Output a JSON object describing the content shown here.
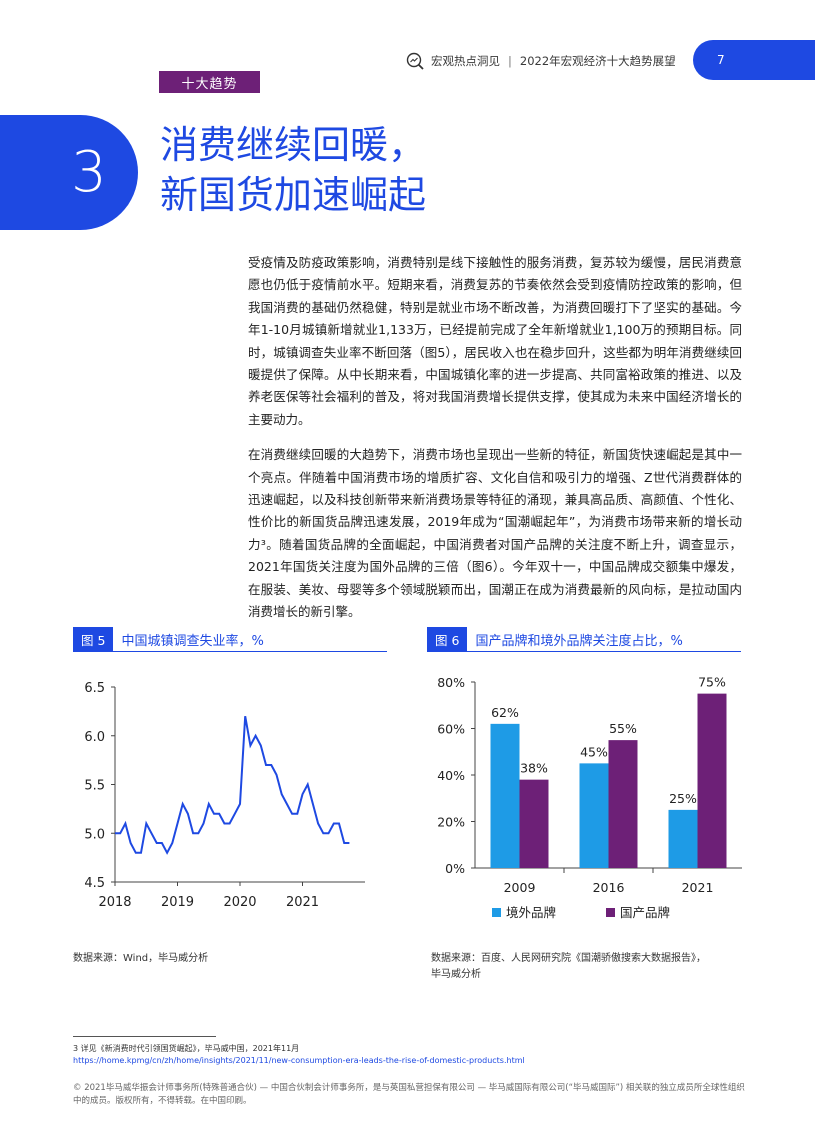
{
  "header": {
    "section": "宏观热点洞见",
    "report": "2022年宏观经济十大趋势展望",
    "page_number": "7"
  },
  "section_tag": "十大趋势",
  "chapter": {
    "number": "3",
    "title_line1": "消费继续回暖，",
    "title_line2": "新国货加速崛起"
  },
  "body": {
    "para1": "受疫情及防疫政策影响，消费特别是线下接触性的服务消费，复苏较为缓慢，居民消费意愿也仍低于疫情前水平。短期来看，消费复苏的节奏依然会受到疫情防控政策的影响，但我国消费的基础仍然稳健，特别是就业市场不断改善，为消费回暖打下了坚实的基础。今年1-10月城镇新增就业1,133万，已经提前完成了全年新增就业1,100万的预期目标。同时，城镇调查失业率不断回落（图5），居民收入也在稳步回升，这些都为明年消费继续回暖提供了保障。从中长期来看，中国城镇化率的进一步提高、共同富裕政策的推进、以及养老医保等社会福利的普及，将对我国消费增长提供支撑，使其成为未来中国经济增长的主要动力。",
    "para2": "在消费继续回暖的大趋势下，消费市场也呈现出一些新的特征，新国货快速崛起是其中一个亮点。伴随着中国消费市场的增质扩容、文化自信和吸引力的增强、Z世代消费群体的迅速崛起，以及科技创新带来新消费场景等特征的涌现，兼具高品质、高颜值、个性化、性价比的新国货品牌迅速发展，2019年成为“国潮崛起年”，为消费市场带来新的增长动力³。随着国货品牌的全面崛起，中国消费者对国产品牌的关注度不断上升，调查显示，2021年国货关注度为国外品牌的三倍（图6）。今年双十一，中国品牌成交额集中爆发，在服装、美妆、母婴等多个领域脱颖而出，国潮正在成为消费最新的风向标，是拉动国内消费增长的新引擎。"
  },
  "fig5": {
    "num": "图 5",
    "title": "中国城镇调查失业率，%",
    "source": "数据来源：Wind，毕马威分析"
  },
  "fig6": {
    "num": "图 6",
    "title": "国产品牌和境外品牌关注度占比，%",
    "source_line1": "数据来源：百度、人民网研究院《国潮骄傲搜索大数据报告》，",
    "source_line2": "毕马威分析"
  },
  "chart_data": [
    {
      "type": "line",
      "x": [
        "2018-01",
        "2018-02",
        "2018-03",
        "2018-04",
        "2018-05",
        "2018-06",
        "2018-07",
        "2018-08",
        "2018-09",
        "2018-10",
        "2018-11",
        "2018-12",
        "2019-01",
        "2019-02",
        "2019-03",
        "2019-04",
        "2019-05",
        "2019-06",
        "2019-07",
        "2019-08",
        "2019-09",
        "2019-10",
        "2019-11",
        "2019-12",
        "2020-01",
        "2020-02",
        "2020-03",
        "2020-04",
        "2020-05",
        "2020-06",
        "2020-07",
        "2020-08",
        "2020-09",
        "2020-10",
        "2020-11",
        "2020-12",
        "2021-01",
        "2021-02",
        "2021-03",
        "2021-04",
        "2021-05",
        "2021-06",
        "2021-07",
        "2021-08",
        "2021-09",
        "2021-10"
      ],
      "series": [
        {
          "values": [
            5.0,
            5.0,
            5.1,
            4.9,
            4.8,
            4.8,
            5.1,
            5.0,
            4.9,
            4.9,
            4.8,
            4.9,
            5.1,
            5.3,
            5.2,
            5.0,
            5.0,
            5.1,
            5.3,
            5.2,
            5.2,
            5.1,
            5.1,
            5.2,
            5.3,
            6.2,
            5.9,
            6.0,
            5.9,
            5.7,
            5.7,
            5.6,
            5.4,
            5.3,
            5.2,
            5.2,
            5.4,
            5.5,
            5.3,
            5.1,
            5.0,
            5.0,
            5.1,
            5.1,
            4.9,
            4.9
          ]
        }
      ],
      "xticks": [
        "2018",
        "2019",
        "2020",
        "2021"
      ],
      "yticks": [
        "4.5",
        "5.0",
        "5.5",
        "6.0",
        "6.5"
      ],
      "ylim": [
        4.5,
        6.5
      ],
      "grid": false,
      "color": "#1e49e2"
    },
    {
      "type": "bar",
      "categories": [
        "2009",
        "2016",
        "2021"
      ],
      "series": [
        {
          "name": "境外品牌",
          "values": [
            62,
            45,
            25
          ],
          "labels": [
            "62%",
            "45%",
            "25%"
          ],
          "color": "#1e9be6"
        },
        {
          "name": "国产品牌",
          "values": [
            38,
            55,
            75
          ],
          "labels": [
            "38%",
            "55%",
            "75%"
          ],
          "color": "#6d2077"
        }
      ],
      "yticks": [
        "0%",
        "20%",
        "40%",
        "60%",
        "80%"
      ],
      "ylim": [
        0,
        80
      ],
      "legend": "bottom"
    }
  ],
  "footnote": {
    "ref": "3 详见《新消费时代引领国货崛起》，毕马威中国，2021年11月",
    "url": "https://home.kpmg/cn/zh/home/insights/2021/11/new-consumption-era-leads-the-rise-of-domestic-products.html"
  },
  "copyright": "© 2021毕马威华振会计师事务所(特殊普通合伙) — 中国合伙制会计师事务所，是与英国私营担保有限公司 — 毕马威国际有限公司(“毕马威国际”) 相关联的独立成员所全球性组织中的成员。版权所有，不得转载。在中国印刷。"
}
